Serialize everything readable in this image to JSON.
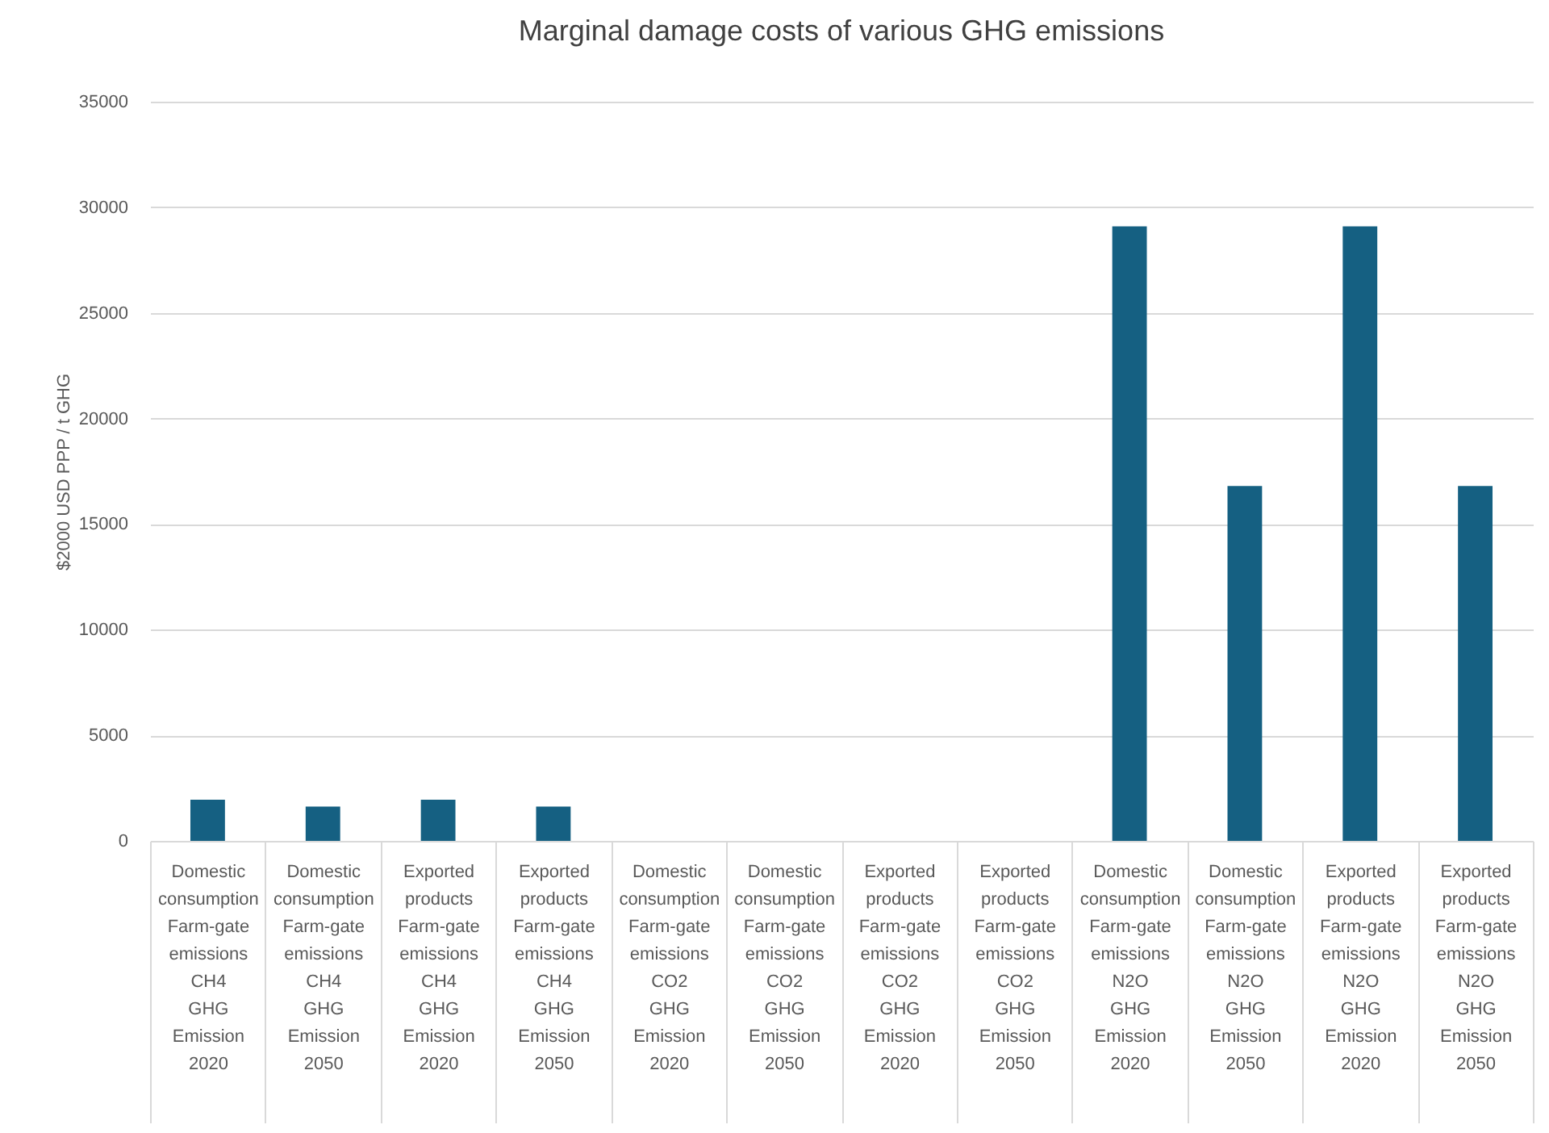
{
  "chart_data": {
    "type": "bar",
    "title": "Marginal damage costs of various GHG emissions",
    "ylabel": "$2000 USD PPP / t GHG",
    "categories": [
      "Domestic\nconsumption\nFarm-gate\nemissions\nCH4\nGHG\nEmission\n2020",
      "Domestic\nconsumption\nFarm-gate\nemissions\nCH4\nGHG\nEmission\n2050",
      "Exported\nproducts\nFarm-gate\nemissions\nCH4\nGHG\nEmission\n2020",
      "Exported\nproducts\nFarm-gate\nemissions\nCH4\nGHG\nEmission\n2050",
      "Domestic\nconsumption\nFarm-gate\nemissions\nCO2\nGHG\nEmission\n2020",
      "Domestic\nconsumption\nFarm-gate\nemissions\nCO2\nGHG\nEmission\n2050",
      "Exported\nproducts\nFarm-gate\nemissions\nCO2\nGHG\nEmission\n2020",
      "Exported\nproducts\nFarm-gate\nemissions\nCO2\nGHG\nEmission\n2050",
      "Domestic\nconsumption\nFarm-gate\nemissions\nN2O\nGHG\nEmission\n2020",
      "Domestic\nconsumption\nFarm-gate\nemissions\nN2O\nGHG\nEmission\n2050",
      "Exported\nproducts\nFarm-gate\nemissions\nN2O\nGHG\nEmission\n2020",
      "Exported\nproducts\nFarm-gate\nemissions\nN2O\nGHG\nEmission\n2050"
    ],
    "values": [
      1950,
      1620,
      1950,
      1620,
      0,
      0,
      0,
      0,
      29100,
      16800,
      29100,
      16800
    ],
    "color": "#156082",
    "ylim": [
      0,
      35000
    ],
    "yticks": [
      0,
      5000,
      10000,
      15000,
      20000,
      25000,
      30000,
      35000
    ],
    "grid": "y"
  }
}
